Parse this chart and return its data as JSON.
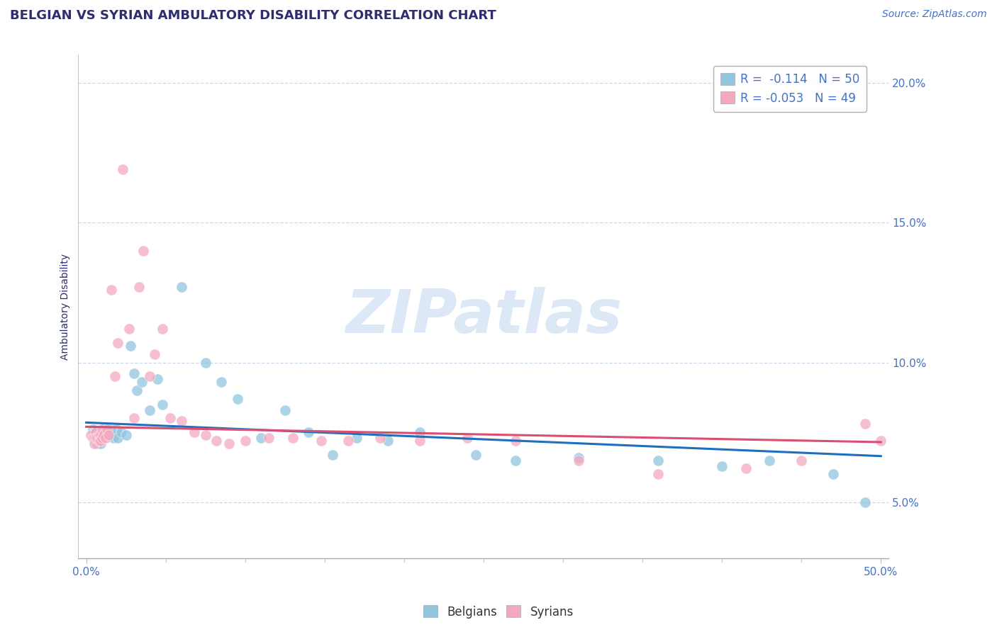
{
  "title": "BELGIAN VS SYRIAN AMBULATORY DISABILITY CORRELATION CHART",
  "source_text": "Source: ZipAtlas.com",
  "ylabel": "Ambulatory Disability",
  "xlabel": "",
  "xlim": [
    -0.005,
    0.505
  ],
  "ylim": [
    0.03,
    0.21
  ],
  "yticks": [
    0.05,
    0.1,
    0.15,
    0.2
  ],
  "ytick_labels": [
    "5.0%",
    "10.0%",
    "15.0%",
    "20.0%"
  ],
  "xtick_major": [
    0.0,
    0.5
  ],
  "xtick_major_labels": [
    "0.0%",
    "50.0%"
  ],
  "xtick_minor": [
    0.05,
    0.1,
    0.15,
    0.2,
    0.25,
    0.3,
    0.35,
    0.4,
    0.45
  ],
  "belgian_color": "#92c5de",
  "syrian_color": "#f4a8be",
  "trend_belgian_color": "#1f6fbe",
  "trend_syrian_color": "#d94f72",
  "title_color": "#2e2e6e",
  "axis_label_color": "#2e2e6e",
  "tick_color": "#4472c4",
  "watermark_text": "ZIPatlas",
  "watermark_color": "#dce8f5",
  "legend_R_belgian": "R =  -0.114",
  "legend_N_belgian": "N = 50",
  "legend_R_syrian": "R = -0.053",
  "legend_N_syrian": "N = 49",
  "belgians_x": [
    0.004,
    0.005,
    0.005,
    0.006,
    0.006,
    0.007,
    0.007,
    0.008,
    0.008,
    0.009,
    0.01,
    0.01,
    0.011,
    0.011,
    0.012,
    0.013,
    0.014,
    0.015,
    0.016,
    0.017,
    0.019,
    0.02,
    0.022,
    0.025,
    0.028,
    0.03,
    0.032,
    0.035,
    0.04,
    0.045,
    0.048,
    0.06,
    0.075,
    0.085,
    0.095,
    0.11,
    0.125,
    0.14,
    0.155,
    0.17,
    0.19,
    0.21,
    0.245,
    0.27,
    0.31,
    0.36,
    0.4,
    0.43,
    0.47,
    0.49
  ],
  "belgians_y": [
    0.076,
    0.075,
    0.073,
    0.073,
    0.075,
    0.073,
    0.071,
    0.075,
    0.073,
    0.071,
    0.076,
    0.074,
    0.076,
    0.074,
    0.076,
    0.076,
    0.074,
    0.076,
    0.074,
    0.073,
    0.076,
    0.073,
    0.075,
    0.074,
    0.106,
    0.096,
    0.09,
    0.093,
    0.083,
    0.094,
    0.085,
    0.127,
    0.1,
    0.093,
    0.087,
    0.073,
    0.083,
    0.075,
    0.067,
    0.073,
    0.072,
    0.075,
    0.067,
    0.065,
    0.066,
    0.065,
    0.063,
    0.065,
    0.06,
    0.05
  ],
  "syrians_x": [
    0.003,
    0.004,
    0.005,
    0.005,
    0.006,
    0.006,
    0.007,
    0.008,
    0.008,
    0.009,
    0.009,
    0.01,
    0.01,
    0.011,
    0.012,
    0.013,
    0.014,
    0.016,
    0.018,
    0.02,
    0.023,
    0.027,
    0.03,
    0.033,
    0.036,
    0.04,
    0.043,
    0.048,
    0.053,
    0.06,
    0.068,
    0.075,
    0.082,
    0.09,
    0.1,
    0.115,
    0.13,
    0.148,
    0.165,
    0.185,
    0.21,
    0.24,
    0.27,
    0.31,
    0.36,
    0.415,
    0.45,
    0.49,
    0.5
  ],
  "syrians_y": [
    0.074,
    0.073,
    0.073,
    0.071,
    0.075,
    0.073,
    0.073,
    0.074,
    0.072,
    0.074,
    0.072,
    0.076,
    0.073,
    0.074,
    0.073,
    0.076,
    0.074,
    0.126,
    0.095,
    0.107,
    0.169,
    0.112,
    0.08,
    0.127,
    0.14,
    0.095,
    0.103,
    0.112,
    0.08,
    0.079,
    0.075,
    0.074,
    0.072,
    0.071,
    0.072,
    0.073,
    0.073,
    0.072,
    0.072,
    0.073,
    0.072,
    0.073,
    0.072,
    0.065,
    0.06,
    0.062,
    0.065,
    0.078,
    0.072
  ],
  "belgian_trend_x": [
    0.0,
    0.5
  ],
  "belgian_trend_y": [
    0.0785,
    0.0665
  ],
  "syrian_trend_x": [
    0.0,
    0.5
  ],
  "syrian_trend_y": [
    0.077,
    0.0715
  ],
  "background_color": "#ffffff",
  "grid_color": "#c8d8e8",
  "title_fontsize": 13,
  "label_fontsize": 10,
  "tick_fontsize": 11,
  "legend_fontsize": 12,
  "source_fontsize": 10
}
